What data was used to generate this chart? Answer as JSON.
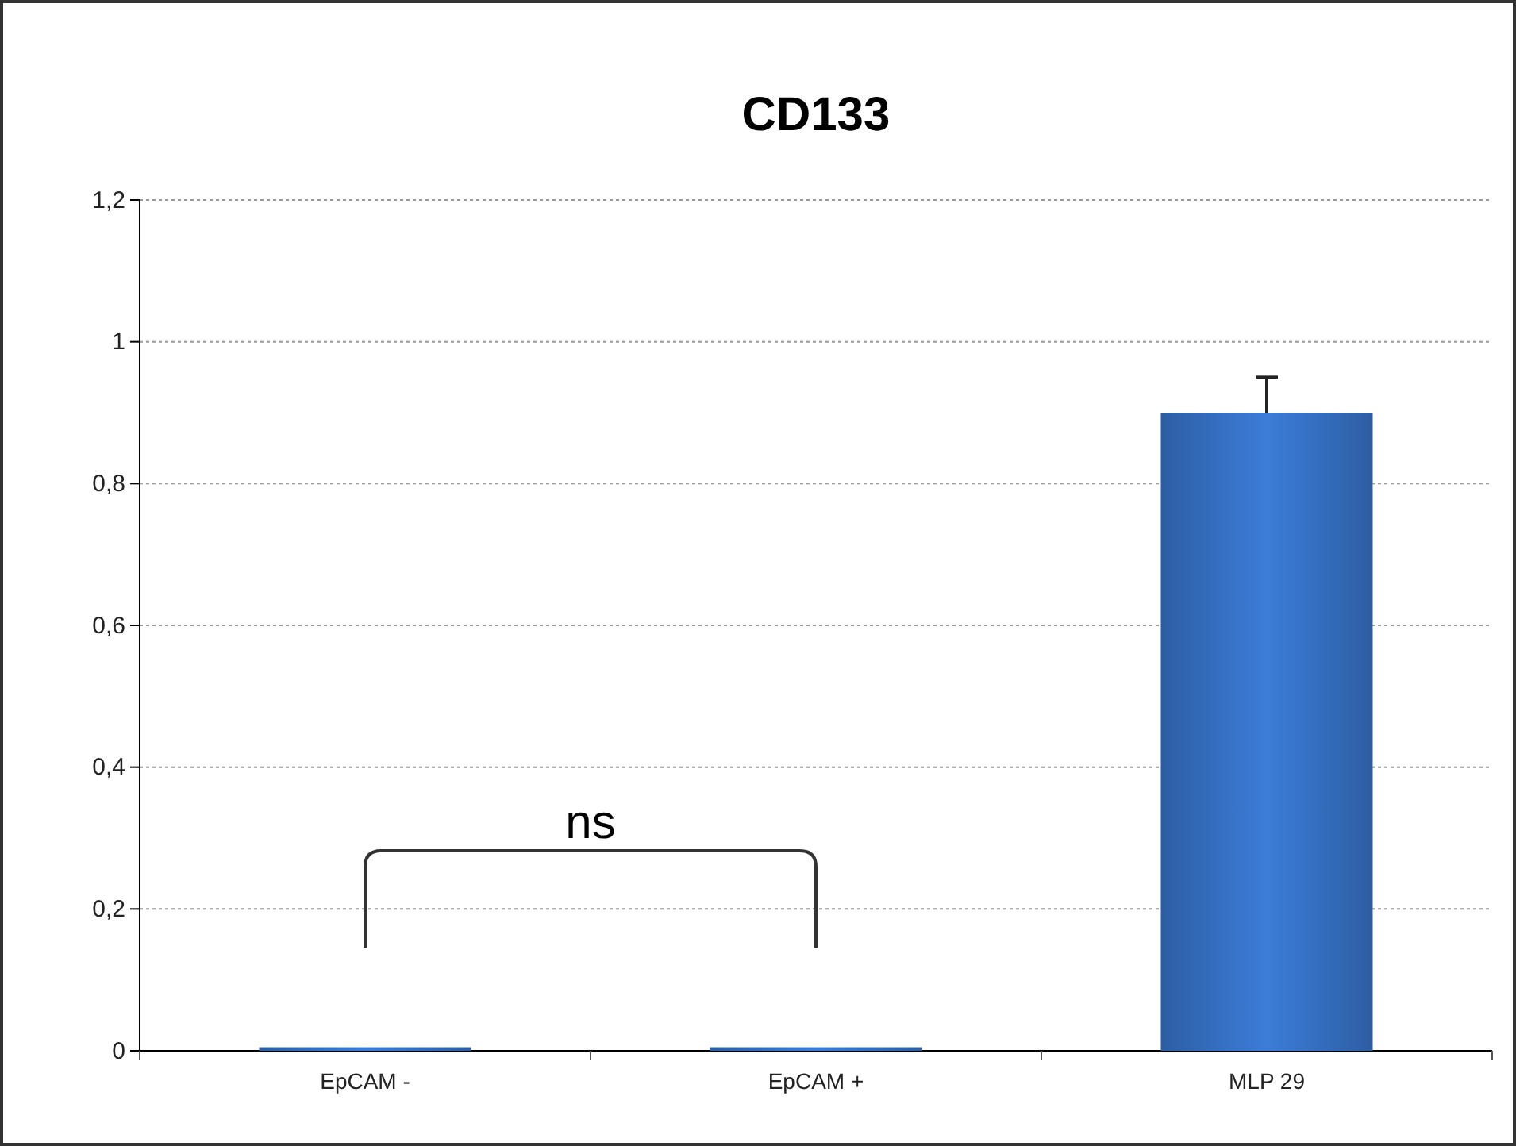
{
  "chart_data": {
    "type": "bar",
    "title": "CD133",
    "categories": [
      "EpCAM -",
      "EpCAM +",
      "MLP 29"
    ],
    "values": [
      0.005,
      0.005,
      0.9
    ],
    "errors": [
      null,
      null,
      [
        0.9,
        0.95
      ]
    ],
    "color": "#3c7dd9",
    "ylim": [
      0,
      1.2
    ],
    "yticks": [
      0,
      {
        "value": 0.2,
        "label": "0,2"
      },
      {
        "value": 0.4,
        "label": "0,4"
      },
      {
        "value": 0.6,
        "label": "0,6"
      },
      {
        "value": 0.8,
        "label": "0,8"
      },
      1,
      {
        "value": 1.2,
        "label": "1,2"
      }
    ],
    "grid": "y",
    "annotations": [
      "ns"
    ]
  }
}
